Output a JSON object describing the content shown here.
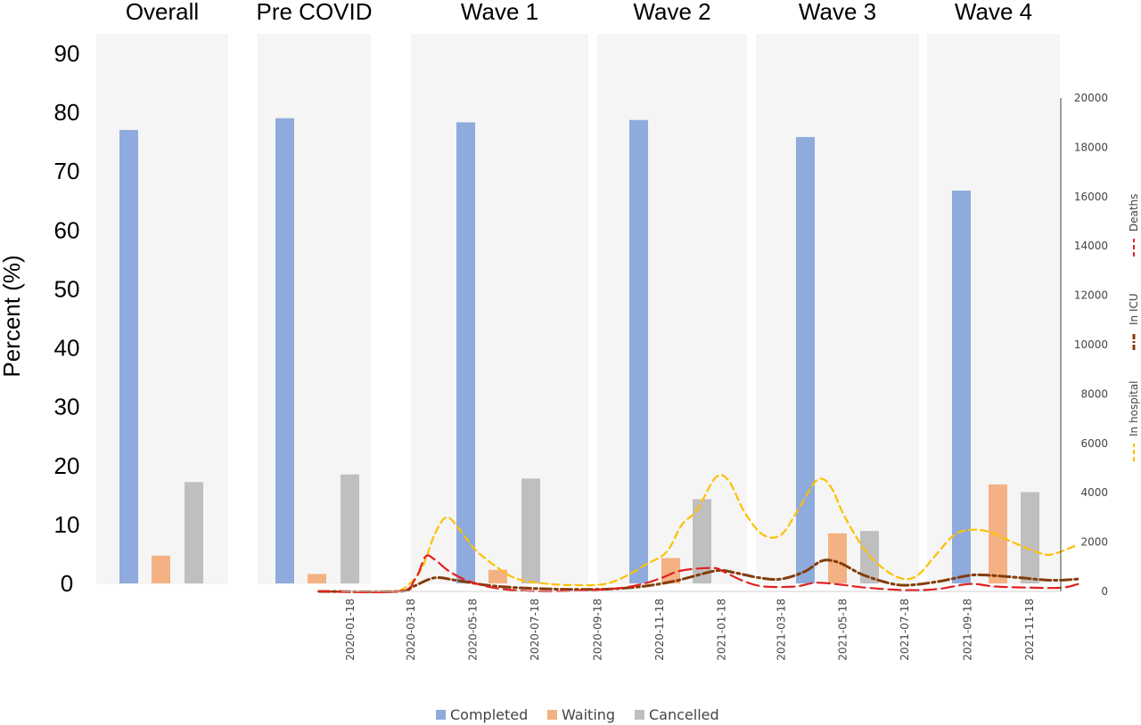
{
  "chart_data": [
    {
      "type": "bar",
      "ylabel": "Percent (%)",
      "ylim": [
        0,
        90
      ],
      "yticks": [
        0,
        10,
        20,
        30,
        40,
        50,
        60,
        70,
        80,
        90
      ],
      "categories": [
        "Overall",
        "Pre COVID",
        "Wave 1",
        "Wave 2",
        "Wave 3",
        "Wave 4"
      ],
      "series": [
        {
          "name": "Completed",
          "color": "#8FAADC",
          "values": [
            77.0,
            79.0,
            78.3,
            78.7,
            75.8,
            66.7
          ]
        },
        {
          "name": "Waiting",
          "color": "#F4B183",
          "values": [
            4.7,
            1.6,
            2.3,
            4.3,
            8.5,
            16.8
          ]
        },
        {
          "name": "Cancelled",
          "color": "#BFBFBF",
          "values": [
            17.2,
            18.5,
            17.8,
            14.3,
            8.9,
            15.5
          ]
        }
      ],
      "legend_position": "bottom-center"
    },
    {
      "type": "line",
      "ylim": [
        0,
        20000
      ],
      "yticks": [
        0,
        2000,
        4000,
        6000,
        8000,
        10000,
        12000,
        14000,
        16000,
        18000,
        20000
      ],
      "xlim": [
        "2019-12-18",
        "2022-01-05"
      ],
      "xticks": [
        "2020-01-18",
        "2020-03-18",
        "2020-05-18",
        "2020-07-18",
        "2020-09-18",
        "2020-11-18",
        "2021-01-18",
        "2021-03-18",
        "2021-05-18",
        "2021-07-18",
        "2021-09-18",
        "2021-11-18"
      ],
      "series": [
        {
          "name": "In hospital",
          "color": "#FFC000",
          "dash": "8,5",
          "points": [
            [
              "2019-12-18",
              0
            ],
            [
              "2020-02-20",
              0
            ],
            [
              "2020-03-10",
              100
            ],
            [
              "2020-03-28",
              900
            ],
            [
              "2020-04-10",
              2300
            ],
            [
              "2020-04-22",
              3000
            ],
            [
              "2020-05-05",
              2500
            ],
            [
              "2020-05-20",
              1700
            ],
            [
              "2020-06-10",
              1000
            ],
            [
              "2020-07-01",
              500
            ],
            [
              "2020-08-01",
              300
            ],
            [
              "2020-09-01",
              250
            ],
            [
              "2020-09-25",
              300
            ],
            [
              "2020-10-15",
              600
            ],
            [
              "2020-11-05",
              1100
            ],
            [
              "2020-11-25",
              1600
            ],
            [
              "2020-12-10",
              2700
            ],
            [
              "2020-12-25",
              3300
            ],
            [
              "2021-01-12",
              4600
            ],
            [
              "2021-01-25",
              4500
            ],
            [
              "2021-02-10",
              3200
            ],
            [
              "2021-02-28",
              2300
            ],
            [
              "2021-03-18",
              2300
            ],
            [
              "2021-04-05",
              3400
            ],
            [
              "2021-04-22",
              4500
            ],
            [
              "2021-05-05",
              4300
            ],
            [
              "2021-05-20",
              3000
            ],
            [
              "2021-06-10",
              1600
            ],
            [
              "2021-07-01",
              800
            ],
            [
              "2021-07-18",
              500
            ],
            [
              "2021-08-01",
              700
            ],
            [
              "2021-08-18",
              1500
            ],
            [
              "2021-09-05",
              2300
            ],
            [
              "2021-09-22",
              2500
            ],
            [
              "2021-10-10",
              2400
            ],
            [
              "2021-11-01",
              2000
            ],
            [
              "2021-11-25",
              1600
            ],
            [
              "2021-12-10",
              1500
            ],
            [
              "2022-01-05",
              1900
            ]
          ]
        },
        {
          "name": "In ICU",
          "color": "#843C0C",
          "dash": "12,4,3,4",
          "points": [
            [
              "2019-12-18",
              0
            ],
            [
              "2020-03-05",
              0
            ],
            [
              "2020-03-20",
              200
            ],
            [
              "2020-04-10",
              550
            ],
            [
              "2020-05-01",
              450
            ],
            [
              "2020-06-01",
              250
            ],
            [
              "2020-07-01",
              150
            ],
            [
              "2020-08-01",
              100
            ],
            [
              "2020-09-01",
              80
            ],
            [
              "2020-10-01",
              100
            ],
            [
              "2020-11-01",
              200
            ],
            [
              "2020-12-01",
              400
            ],
            [
              "2020-12-20",
              600
            ],
            [
              "2021-01-15",
              850
            ],
            [
              "2021-02-01",
              750
            ],
            [
              "2021-02-25",
              550
            ],
            [
              "2021-03-18",
              500
            ],
            [
              "2021-04-10",
              800
            ],
            [
              "2021-04-28",
              1250
            ],
            [
              "2021-05-15",
              1150
            ],
            [
              "2021-06-05",
              700
            ],
            [
              "2021-07-01",
              350
            ],
            [
              "2021-07-20",
              250
            ],
            [
              "2021-08-20",
              400
            ],
            [
              "2021-09-20",
              650
            ],
            [
              "2021-10-10",
              650
            ],
            [
              "2021-11-10",
              550
            ],
            [
              "2021-12-10",
              450
            ],
            [
              "2022-01-05",
              500
            ]
          ]
        },
        {
          "name": "Deaths",
          "color": "#E02020",
          "dash": "14,6",
          "points": [
            [
              "2019-12-18",
              0
            ],
            [
              "2020-03-05",
              0
            ],
            [
              "2020-03-22",
              500
            ],
            [
              "2020-04-01",
              1400
            ],
            [
              "2020-04-10",
              1300
            ],
            [
              "2020-04-25",
              800
            ],
            [
              "2020-05-15",
              400
            ],
            [
              "2020-06-15",
              100
            ],
            [
              "2020-08-01",
              0
            ],
            [
              "2020-10-01",
              100
            ],
            [
              "2020-11-01",
              300
            ],
            [
              "2020-11-20",
              550
            ],
            [
              "2020-12-10",
              850
            ],
            [
              "2021-01-10",
              950
            ],
            [
              "2021-01-20",
              800
            ],
            [
              "2021-02-10",
              400
            ],
            [
              "2021-03-01",
              200
            ],
            [
              "2021-04-01",
              200
            ],
            [
              "2021-04-20",
              350
            ],
            [
              "2021-05-10",
              300
            ],
            [
              "2021-06-10",
              150
            ],
            [
              "2021-07-20",
              50
            ],
            [
              "2021-08-20",
              100
            ],
            [
              "2021-09-20",
              300
            ],
            [
              "2021-10-15",
              200
            ],
            [
              "2021-11-20",
              150
            ],
            [
              "2021-12-20",
              150
            ],
            [
              "2022-01-05",
              300
            ]
          ]
        }
      ],
      "legend_position": "right"
    }
  ]
}
